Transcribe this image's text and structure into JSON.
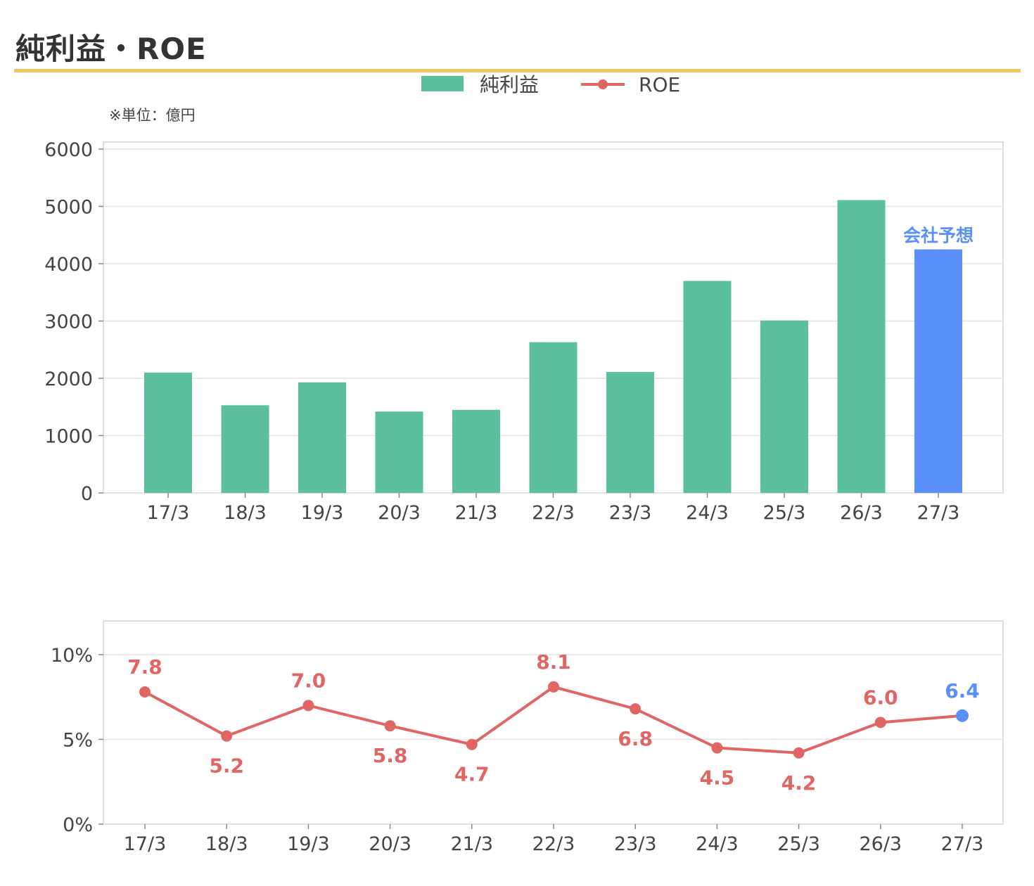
{
  "title": "純利益・ROE",
  "unit_note": "※単位：億円",
  "colors": {
    "bar": "#5cc09f",
    "forecast": "#5b8ff9",
    "roe": "#e06666",
    "accent_rule": "#f3c462",
    "grid": "#e3e3e3",
    "frame": "#dddddd"
  },
  "forecast_label": "会社予想",
  "chart_data": [
    {
      "type": "bar",
      "categories": [
        "17/3",
        "18/3",
        "19/3",
        "20/3",
        "21/3",
        "22/3",
        "23/3",
        "24/3",
        "25/3",
        "26/3",
        "27/3"
      ],
      "series": [
        {
          "name": "純利益",
          "values": [
            2100,
            1530,
            1930,
            1420,
            1450,
            2630,
            2110,
            3700,
            3010,
            5110,
            4250
          ]
        }
      ],
      "forecast_index": 10,
      "ylim": [
        0,
        6000
      ],
      "yticks": [
        0,
        1000,
        2000,
        3000,
        4000,
        5000,
        6000
      ],
      "grid": true,
      "legend": "top-center"
    },
    {
      "type": "line",
      "categories": [
        "17/3",
        "18/3",
        "19/3",
        "20/3",
        "21/3",
        "22/3",
        "23/3",
        "24/3",
        "25/3",
        "26/3",
        "27/3"
      ],
      "series": [
        {
          "name": "ROE",
          "values": [
            7.8,
            5.2,
            7.0,
            5.8,
            4.7,
            8.1,
            6.8,
            4.5,
            4.2,
            6.0,
            6.4
          ],
          "labels": [
            "7.8",
            "5.2",
            "7.0",
            "5.8",
            "4.7",
            "8.1",
            "6.8",
            "4.5",
            "4.2",
            "6.0",
            "6.4"
          ],
          "label_pos": [
            "above",
            "below",
            "above",
            "below",
            "below",
            "above",
            "below",
            "below",
            "below",
            "above",
            "above"
          ]
        }
      ],
      "forecast_index": 10,
      "ylim": [
        0,
        12
      ],
      "yticks": [
        0,
        5,
        10
      ],
      "ytick_labels": [
        "0%",
        "5%",
        "10%"
      ],
      "grid": true
    }
  ]
}
